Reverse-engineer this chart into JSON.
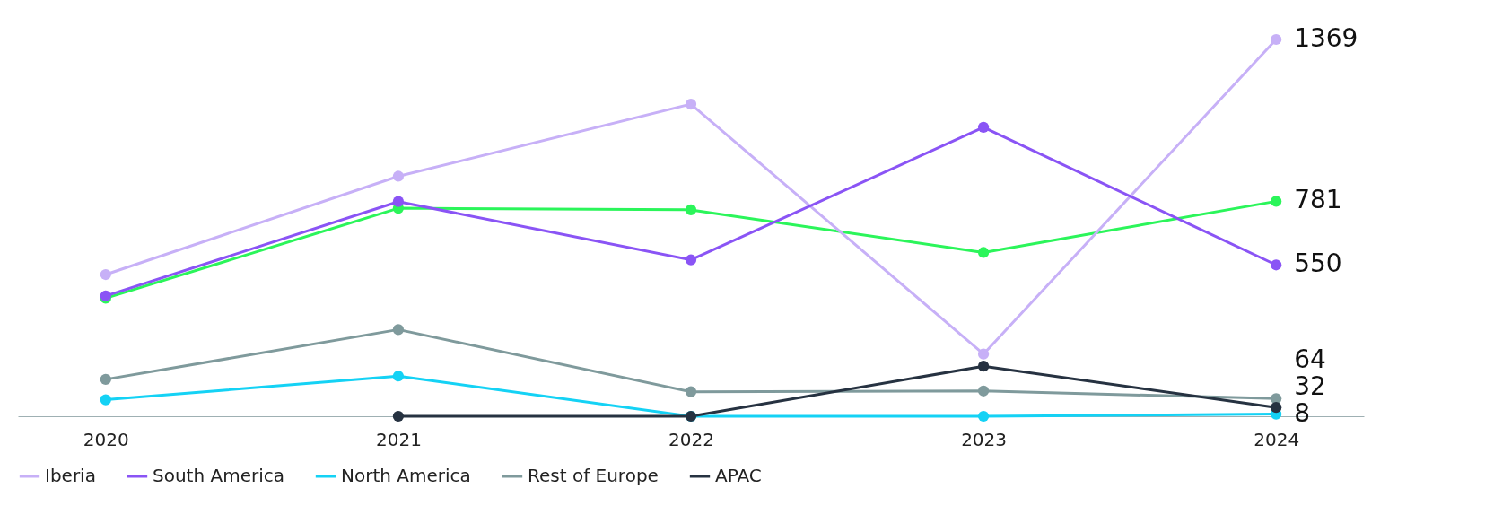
{
  "chart_data": {
    "type": "line",
    "categories": [
      "2020",
      "2021",
      "2022",
      "2023",
      "2024"
    ],
    "series": [
      {
        "color": "#2bf55a",
        "values": [
          429,
          756,
          750,
          595,
          781
        ],
        "value_labels": [
          null,
          null,
          null,
          null,
          "781"
        ]
      },
      {
        "name": "Iberia",
        "color": "#c7b0f7",
        "values": [
          515,
          872,
          1134,
          226,
          1369
        ],
        "value_labels": [
          null,
          null,
          null,
          null,
          "1369"
        ]
      },
      {
        "name": "South America",
        "color": "#8a54f5",
        "values": [
          437,
          780,
          568,
          1050,
          550
        ],
        "value_labels": [
          null,
          null,
          null,
          null,
          "550"
        ]
      },
      {
        "name": "North America",
        "color": "#14d2f5",
        "values": [
          60,
          146,
          0,
          0,
          8
        ],
        "value_labels": [
          null,
          null,
          null,
          null,
          "8"
        ]
      },
      {
        "name": "Rest of Europe",
        "color": "#7f9a9c",
        "values": [
          134,
          315,
          89,
          92,
          64
        ],
        "value_labels": [
          null,
          null,
          null,
          null,
          "64"
        ]
      },
      {
        "name": "APAC",
        "color": "#263241",
        "values": [
          null,
          0,
          0,
          182,
          32
        ],
        "value_labels": [
          null,
          null,
          null,
          null,
          "32"
        ]
      }
    ],
    "marker": "circle",
    "grid": false,
    "legend": "bottom"
  }
}
